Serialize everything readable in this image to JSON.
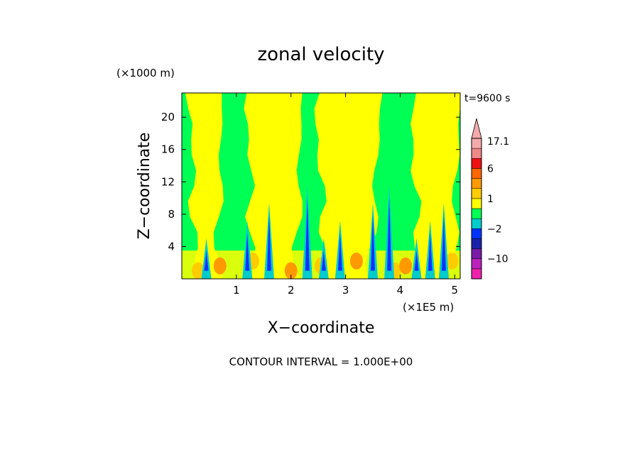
{
  "chart_data": {
    "type": "heatmap",
    "title": "zonal velocity",
    "xlabel": "X−coordinate",
    "ylabel": "Z−coordinate",
    "x_scale_label": "(×1E5 m)",
    "y_scale_label": "(×1000 m)",
    "xlim": [
      0,
      5.1
    ],
    "ylim": [
      0,
      23
    ],
    "x_ticks": [
      1,
      2,
      3,
      4,
      5
    ],
    "y_ticks": [
      4,
      8,
      12,
      16,
      20
    ],
    "time_label": "t=9600 s",
    "contour_interval": "CONTOUR INTERVAL = 1.000E+00",
    "colorbar": {
      "max_label": "17.1",
      "labels": [
        {
          "text": "17.1",
          "level": 17.1
        },
        {
          "text": "6",
          "level": 6
        },
        {
          "text": "1",
          "level": 1
        },
        {
          "text": "−2",
          "level": -2
        },
        {
          "text": "−10",
          "level": -10
        }
      ],
      "levels": [
        {
          "value": -18,
          "color": "#ee22aa"
        },
        {
          "value": -14,
          "color": "#bb22bb"
        },
        {
          "value": -10,
          "color": "#7a1aa8"
        },
        {
          "value": -6,
          "color": "#1a22aa"
        },
        {
          "value": -3,
          "color": "#0033ff"
        },
        {
          "value": -2,
          "color": "#00cccc"
        },
        {
          "value": -1,
          "color": "#00ff55"
        },
        {
          "value": 0,
          "color": "#ffff00"
        },
        {
          "value": 1,
          "color": "#ffcc00"
        },
        {
          "value": 2,
          "color": "#ff9900"
        },
        {
          "value": 3,
          "color": "#ff6600"
        },
        {
          "value": 6,
          "color": "#ee1111"
        },
        {
          "value": 10,
          "color": "#f08888"
        },
        {
          "value": 14,
          "color": "#f4aaaa"
        }
      ]
    },
    "field": {
      "green_background": "#00ff55",
      "yellow_plumes": [
        {
          "x_center": 0.45,
          "x_half_width_top": 0.3,
          "x_half_width_base": 0.2
        },
        {
          "x_center": 1.7,
          "x_half_width_top": 0.5,
          "x_half_width_base": 0.4
        },
        {
          "x_center": 3.05,
          "x_half_width_top": 0.6,
          "x_half_width_base": 0.4
        },
        {
          "x_center": 4.65,
          "x_half_width_top": 0.45,
          "x_half_width_base": 0.3
        }
      ],
      "convective_spikes_x": [
        0.45,
        1.2,
        1.6,
        2.3,
        2.6,
        2.9,
        3.5,
        3.8,
        4.3,
        4.55,
        4.8
      ]
    }
  }
}
